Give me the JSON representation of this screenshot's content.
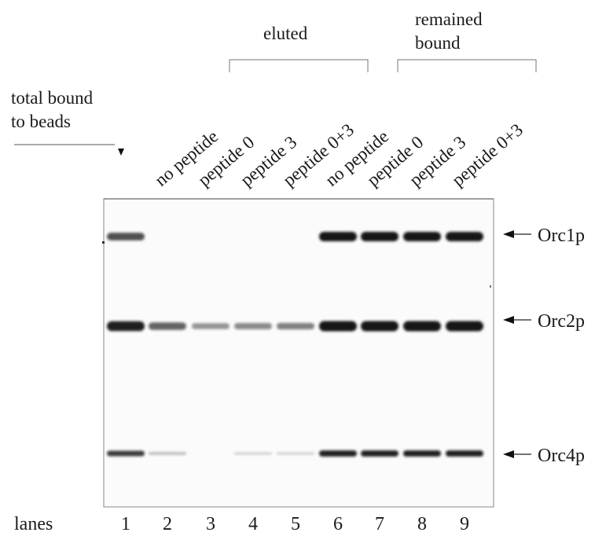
{
  "group_labels": {
    "total": [
      "total bound",
      "to beads"
    ],
    "eluted": "eluted",
    "remained": [
      "remained",
      "bound"
    ]
  },
  "lane_labels": [
    "no peptide",
    "peptide 0",
    "peptide 3",
    "peptide 0+3",
    "no peptide",
    "peptide 0",
    "peptide 3",
    "peptide 0+3"
  ],
  "lanes_label": "lanes",
  "lane_numbers": [
    "1",
    "2",
    "3",
    "4",
    "5",
    "6",
    "7",
    "8",
    "9"
  ],
  "band_labels": [
    "Orc1p",
    "Orc2p",
    "Orc4p"
  ],
  "band_intensity": {
    "Orc1p": [
      0.7,
      0,
      0,
      0,
      0,
      1,
      1,
      1,
      1
    ],
    "Orc2p": [
      0.95,
      0.6,
      0.35,
      0.4,
      0.45,
      1,
      1,
      1,
      1
    ],
    "Orc4p": [
      0.8,
      0.15,
      0,
      0.05,
      0.05,
      0.95,
      0.95,
      0.95,
      0.95
    ]
  }
}
